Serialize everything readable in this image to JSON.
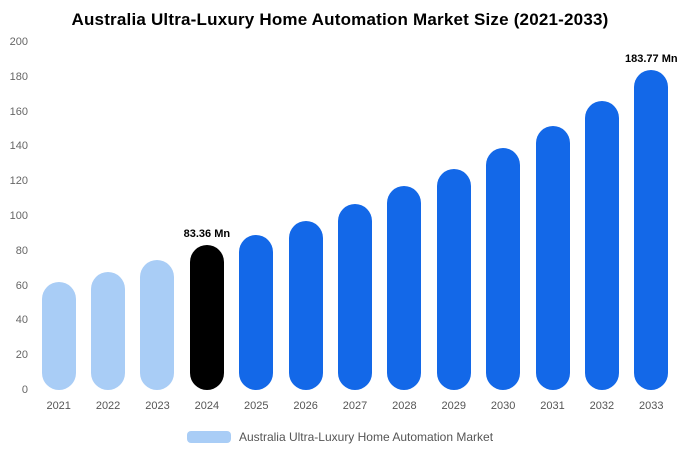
{
  "title": "Australia Ultra-Luxury Home Automation Market Size (2021-2033)",
  "legend": {
    "label": "Australia Ultra-Luxury Home Automation Market",
    "swatch_color": "#a9cdf6"
  },
  "colors": {
    "light_blue": "#a9cdf6",
    "blue": "#1368e8",
    "highlight_black": "#000000"
  },
  "chart_data": {
    "type": "bar",
    "title": "Australia Ultra-Luxury Home Automation Market Size (2021-2033)",
    "categories": [
      "2021",
      "2022",
      "2023",
      "2024",
      "2025",
      "2026",
      "2027",
      "2028",
      "2029",
      "2030",
      "2031",
      "2032",
      "2033"
    ],
    "values": [
      62,
      68,
      75,
      83.36,
      89,
      97,
      107,
      117,
      127,
      139,
      152,
      166,
      183.77
    ],
    "bar_colors": [
      "#a9cdf6",
      "#a9cdf6",
      "#a9cdf6",
      "#000000",
      "#1368e8",
      "#1368e8",
      "#1368e8",
      "#1368e8",
      "#1368e8",
      "#1368e8",
      "#1368e8",
      "#1368e8",
      "#1368e8"
    ],
    "annotations": [
      {
        "index": 3,
        "text": "83.36 Mn"
      },
      {
        "index": 12,
        "text": "183.77 Mn"
      }
    ],
    "xlabel": "",
    "ylabel": "",
    "ylim": [
      0,
      200
    ],
    "yticks": [
      0,
      20,
      40,
      60,
      80,
      100,
      120,
      140,
      160,
      180,
      200
    ],
    "grid": false,
    "legend_position": "bottom"
  }
}
